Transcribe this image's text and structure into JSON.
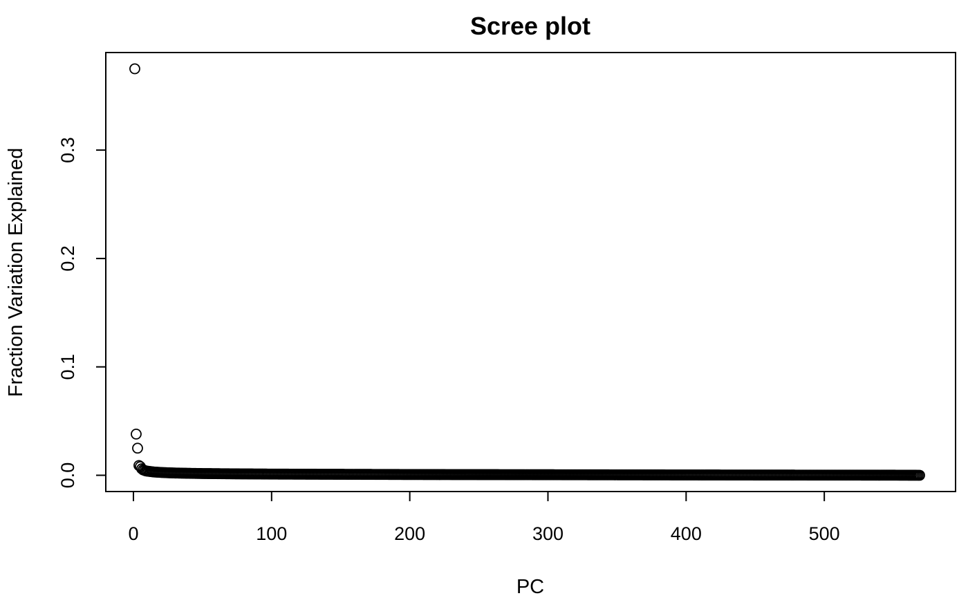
{
  "chart_data": {
    "type": "scatter",
    "title": "Scree plot",
    "xlabel": "PC",
    "ylabel": "Fraction Variation Explained",
    "xlim": [
      -20,
      595
    ],
    "ylim": [
      -0.015,
      0.39
    ],
    "x_ticks": [
      0,
      100,
      200,
      300,
      400,
      500
    ],
    "y_ticks": [
      0.0,
      0.1,
      0.2,
      0.3
    ],
    "x_tick_labels": [
      "0",
      "100",
      "200",
      "300",
      "400",
      "500"
    ],
    "y_tick_labels": [
      "0.0",
      "0.1",
      "0.2",
      "0.3"
    ],
    "grid": false,
    "legend": "none",
    "marker": "open-circle",
    "colors": {
      "points": "#000000",
      "axes": "#000000",
      "background": "#ffffff"
    },
    "series": [
      {
        "x": [
          1,
          2,
          3,
          4,
          5,
          6,
          7,
          8,
          9,
          10,
          12,
          15,
          20,
          25,
          30,
          40,
          50,
          75,
          100,
          150,
          200,
          250,
          300,
          350,
          400,
          450,
          500,
          550,
          569
        ],
        "y": [
          0.375,
          0.038,
          0.025,
          0.009,
          0.008,
          0.006,
          0.005,
          0.0045,
          0.004,
          0.0038,
          0.0035,
          0.003,
          0.0026,
          0.0023,
          0.0021,
          0.0018,
          0.0016,
          0.0013,
          0.0011,
          0.0009,
          0.0007,
          0.0006,
          0.0005,
          0.0004,
          0.0003,
          0.0002,
          0.00015,
          0.0001,
          0.0
        ]
      }
    ]
  }
}
